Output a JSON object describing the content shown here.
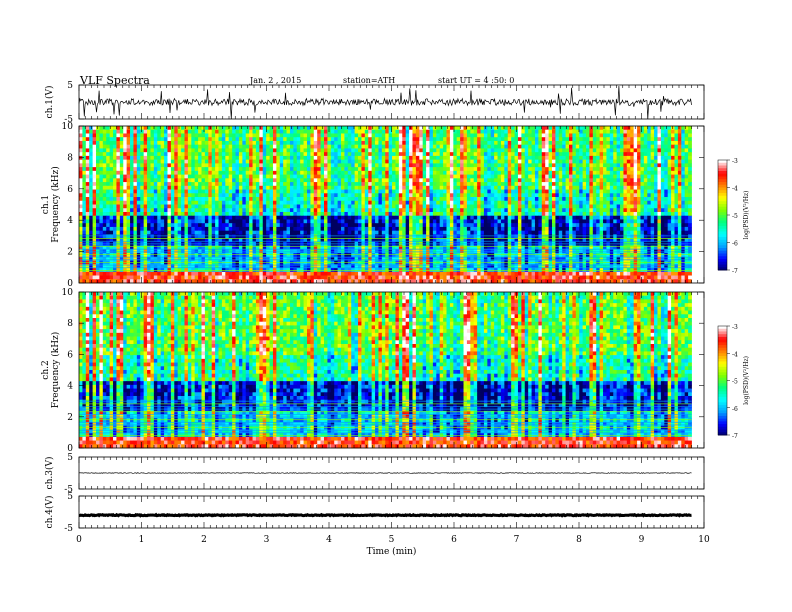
{
  "header": {
    "title": "VLF  Spectra",
    "date": "Jan. 2 , 2015",
    "station": "station=ATH",
    "start": "start  UT  =   4  :50: 0"
  },
  "chart_data": {
    "type": "heatmap",
    "title": "VLF  Spectra",
    "x": {
      "label": "Time  (min)",
      "range": [
        0,
        10
      ],
      "ticks": [
        "0",
        "1",
        "2",
        "3",
        "4",
        "5",
        "6",
        "7",
        "8",
        "9",
        "10"
      ],
      "data_end": 9.8
    },
    "panels": [
      {
        "name": "ch1-waveform",
        "type": "line",
        "ylabel": "ch.1(V)",
        "yrange": [
          -5,
          5
        ],
        "yticks": [
          "5",
          "-5"
        ],
        "level": 0,
        "noise_amplitude": 1.0,
        "spikes": true,
        "line_color": "#000000"
      },
      {
        "name": "ch1-spectrogram",
        "type": "heatmap",
        "ylabel": "ch.1 Frequency  (kHz)",
        "yrange": [
          0,
          10
        ],
        "yticks": [
          "0",
          "2",
          "4",
          "6",
          "8",
          "10"
        ],
        "seed": 7,
        "colorbar": {
          "label": "log(PSD)(V²/Hz)",
          "range": [
            -7,
            -3
          ],
          "ticks": [
            "-3",
            "-4",
            "-5",
            "-6",
            "-7"
          ]
        }
      },
      {
        "name": "ch2-spectrogram",
        "type": "heatmap",
        "ylabel": "ch.2 Frequency  (kHz)",
        "yrange": [
          0,
          10
        ],
        "yticks": [
          "0",
          "2",
          "4",
          "6",
          "8",
          "10"
        ],
        "seed": 19,
        "colorbar": {
          "label": "log(PSD)(V²/Hz)",
          "range": [
            -7,
            -3
          ],
          "ticks": [
            "-3",
            "-4",
            "-5",
            "-6",
            "-7"
          ]
        }
      },
      {
        "name": "ch3-waveform",
        "type": "line",
        "ylabel": "ch.3(V)",
        "yrange": [
          -5,
          5
        ],
        "yticks": [
          "5",
          "-5"
        ],
        "level": 0,
        "noise_amplitude": 0.1,
        "spikes": false,
        "line_color": "#000000"
      },
      {
        "name": "ch4-waveform",
        "type": "line",
        "ylabel": "ch.4(V)",
        "yrange": [
          -5,
          5
        ],
        "yticks": [
          "5",
          "-5"
        ],
        "level": -1,
        "noise_amplitude": 0.15,
        "spikes": false,
        "line_color": "#000000",
        "thick": true
      }
    ],
    "colormap": [
      "#000060",
      "#0000ff",
      "#00a0ff",
      "#00ffff",
      "#00ff80",
      "#80ff00",
      "#ffff00",
      "#ff8000",
      "#ff0000",
      "#ffffff"
    ],
    "grid": false
  }
}
